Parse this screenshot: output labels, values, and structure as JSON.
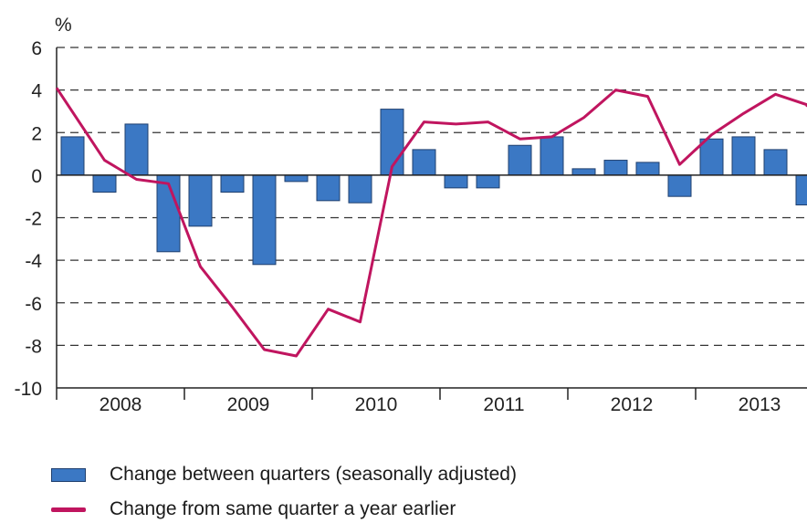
{
  "chart_data": {
    "type": "bar",
    "ylabel": "%",
    "ylim": [
      -10,
      6
    ],
    "yticks": [
      6,
      4,
      2,
      0,
      -2,
      -4,
      -6,
      -8,
      -10
    ],
    "year_labels": [
      "2008",
      "2009",
      "2010",
      "2011",
      "2012",
      "2013"
    ],
    "quarters": [
      "2008Q1",
      "2008Q2",
      "2008Q3",
      "2008Q4",
      "2009Q1",
      "2009Q2",
      "2009Q3",
      "2009Q4",
      "2010Q1",
      "2010Q2",
      "2010Q3",
      "2010Q4",
      "2011Q1",
      "2011Q2",
      "2011Q3",
      "2011Q4",
      "2012Q1",
      "2012Q2",
      "2012Q3",
      "2012Q4",
      "2013Q1",
      "2013Q2",
      "2013Q3",
      "2013Q4"
    ],
    "series": [
      {
        "name": "Change between quarters (seasonally adjusted)",
        "kind": "bar",
        "color": "#3b78c4",
        "values": [
          1.8,
          -0.8,
          2.4,
          -3.6,
          -2.4,
          -0.8,
          -4.2,
          -0.3,
          -1.2,
          -1.3,
          3.1,
          1.2,
          -0.6,
          -0.6,
          1.4,
          1.8,
          0.3,
          0.7,
          0.6,
          -1.0,
          1.7,
          1.8,
          1.2,
          -1.4
        ]
      },
      {
        "name": "Change from same quarter a year earlier",
        "kind": "line",
        "color": "#c0155f",
        "values": [
          4.1,
          0.7,
          -0.2,
          -0.4,
          -4.3,
          -6.2,
          -8.2,
          -8.5,
          -6.3,
          -6.9,
          0.4,
          2.5,
          2.4,
          2.5,
          1.7,
          1.8,
          2.7,
          4.0,
          3.7,
          0.5,
          1.9,
          2.9,
          3.8,
          3.3
        ]
      }
    ],
    "grid": "dashed horizontal",
    "legend_position": "bottom"
  }
}
